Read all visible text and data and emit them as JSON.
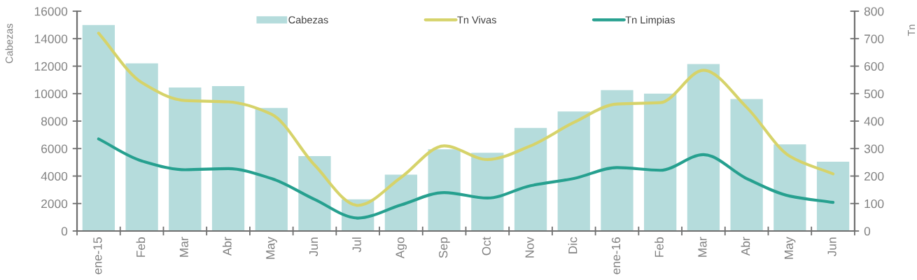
{
  "chart_data": {
    "type": "bar",
    "categories": [
      "ene-15",
      "Feb",
      "Mar",
      "Abr",
      "May",
      "Jun",
      "Jul",
      "Ago",
      "Sep",
      "Oct",
      "Nov",
      "Dic",
      "ene-16",
      "Feb",
      "Mar",
      "Abr",
      "May",
      "Jun"
    ],
    "series": [
      {
        "name": "Cabezas",
        "color": "#b5dcdc",
        "values": [
          15000,
          12200,
          10450,
          10550,
          8950,
          5450,
          2300,
          4100,
          5950,
          5700,
          7500,
          8700,
          10250,
          10000,
          12150,
          9600,
          6300,
          5050
        ]
      },
      {
        "name": "Tn Vivas",
        "type": "line",
        "axis": "y2",
        "color": "#d6d36a",
        "values": [
          720,
          540,
          475,
          470,
          425,
          240,
          93,
          195,
          310,
          260,
          310,
          395,
          462,
          467,
          585,
          450,
          272,
          208
        ]
      },
      {
        "name": "Tn Limpias",
        "type": "line",
        "axis": "y2",
        "color": "#26a08f",
        "values": [
          335,
          255,
          223,
          227,
          191,
          115,
          47,
          95,
          140,
          120,
          165,
          191,
          231,
          221,
          278,
          191,
          127,
          104
        ]
      }
    ],
    "ylabel": "Cabezas",
    "y2label": "Tn",
    "ylim": [
      0,
      16000
    ],
    "yticks": [
      0,
      2000,
      4000,
      6000,
      8000,
      10000,
      12000,
      14000,
      16000
    ],
    "y2lim": [
      0,
      800
    ],
    "y2ticks": [
      0,
      100,
      200,
      300,
      400,
      500,
      600,
      700,
      800
    ],
    "legend": "top",
    "grid": false
  }
}
